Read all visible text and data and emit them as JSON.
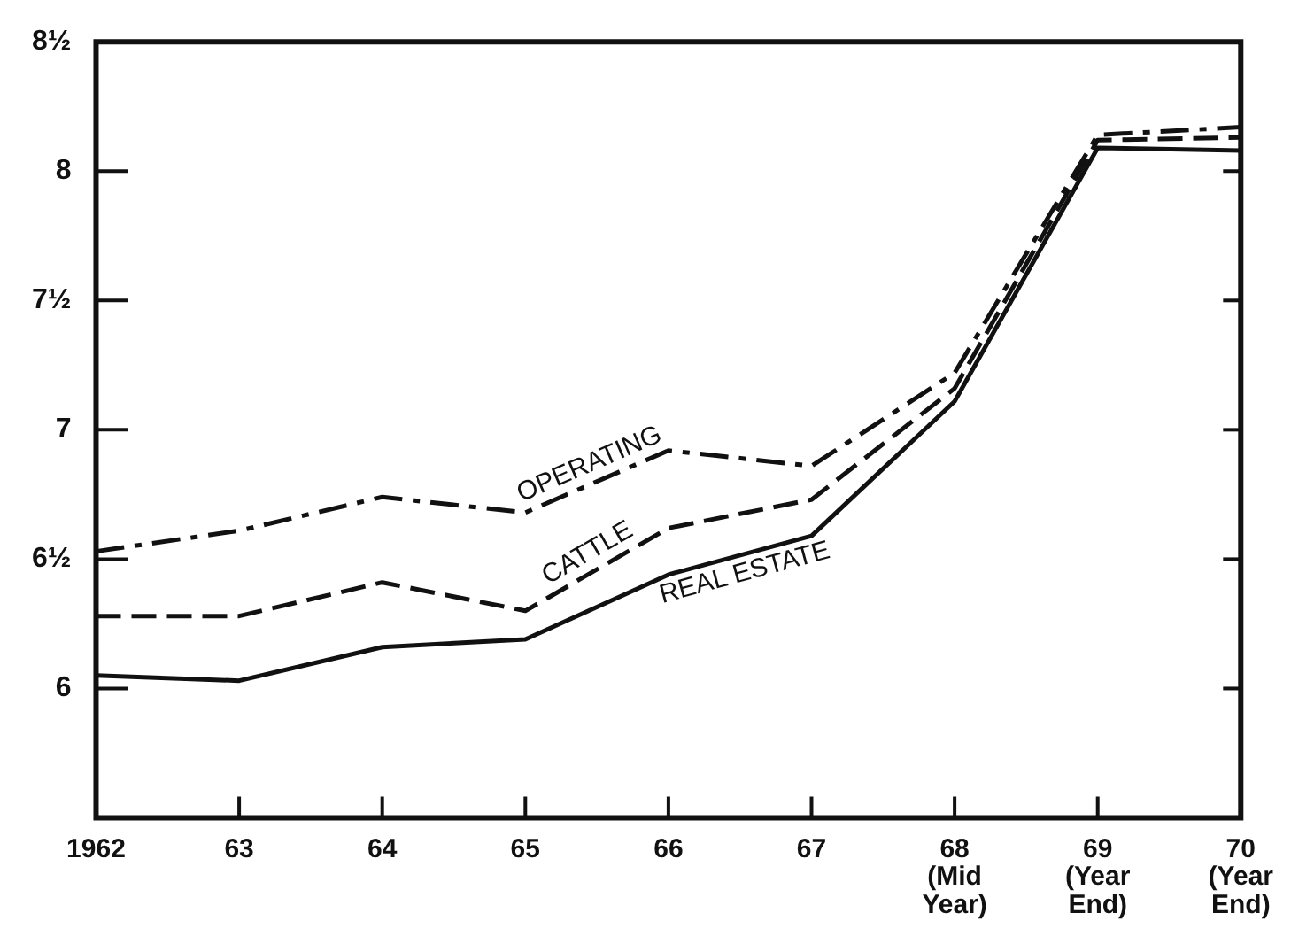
{
  "chart_data": {
    "type": "line",
    "categories": [
      "1962",
      "63",
      "64",
      "65",
      "66",
      "67",
      "68 (Mid Year)",
      "69 (Year End)",
      "70 (Year End)"
    ],
    "series": [
      {
        "name": "OPERATING",
        "color": "#111111",
        "line_style": "dashdot",
        "values": [
          6.53,
          6.61,
          6.74,
          6.68,
          6.92,
          6.86,
          7.22,
          8.14,
          8.17
        ]
      },
      {
        "name": "CATTLE",
        "color": "#111111",
        "line_style": "dashed",
        "values": [
          6.28,
          6.28,
          6.41,
          6.3,
          6.62,
          6.73,
          7.16,
          8.12,
          8.13
        ]
      },
      {
        "name": "REAL ESTATE",
        "color": "#111111",
        "line_style": "solid",
        "values": [
          6.05,
          6.03,
          6.16,
          6.19,
          6.44,
          6.59,
          7.11,
          8.09,
          8.08
        ]
      }
    ],
    "ylim": [
      5.5,
      8.5
    ],
    "yticks": [
      {
        "value": 6,
        "label": "6"
      },
      {
        "value": 6.5,
        "label": "6½"
      },
      {
        "value": 7,
        "label": "7"
      },
      {
        "value": 7.5,
        "label": "7½"
      },
      {
        "value": 8,
        "label": "8"
      },
      {
        "value": 8.5,
        "label": "8½"
      }
    ],
    "grid": false,
    "legend": false,
    "marker": "none"
  }
}
